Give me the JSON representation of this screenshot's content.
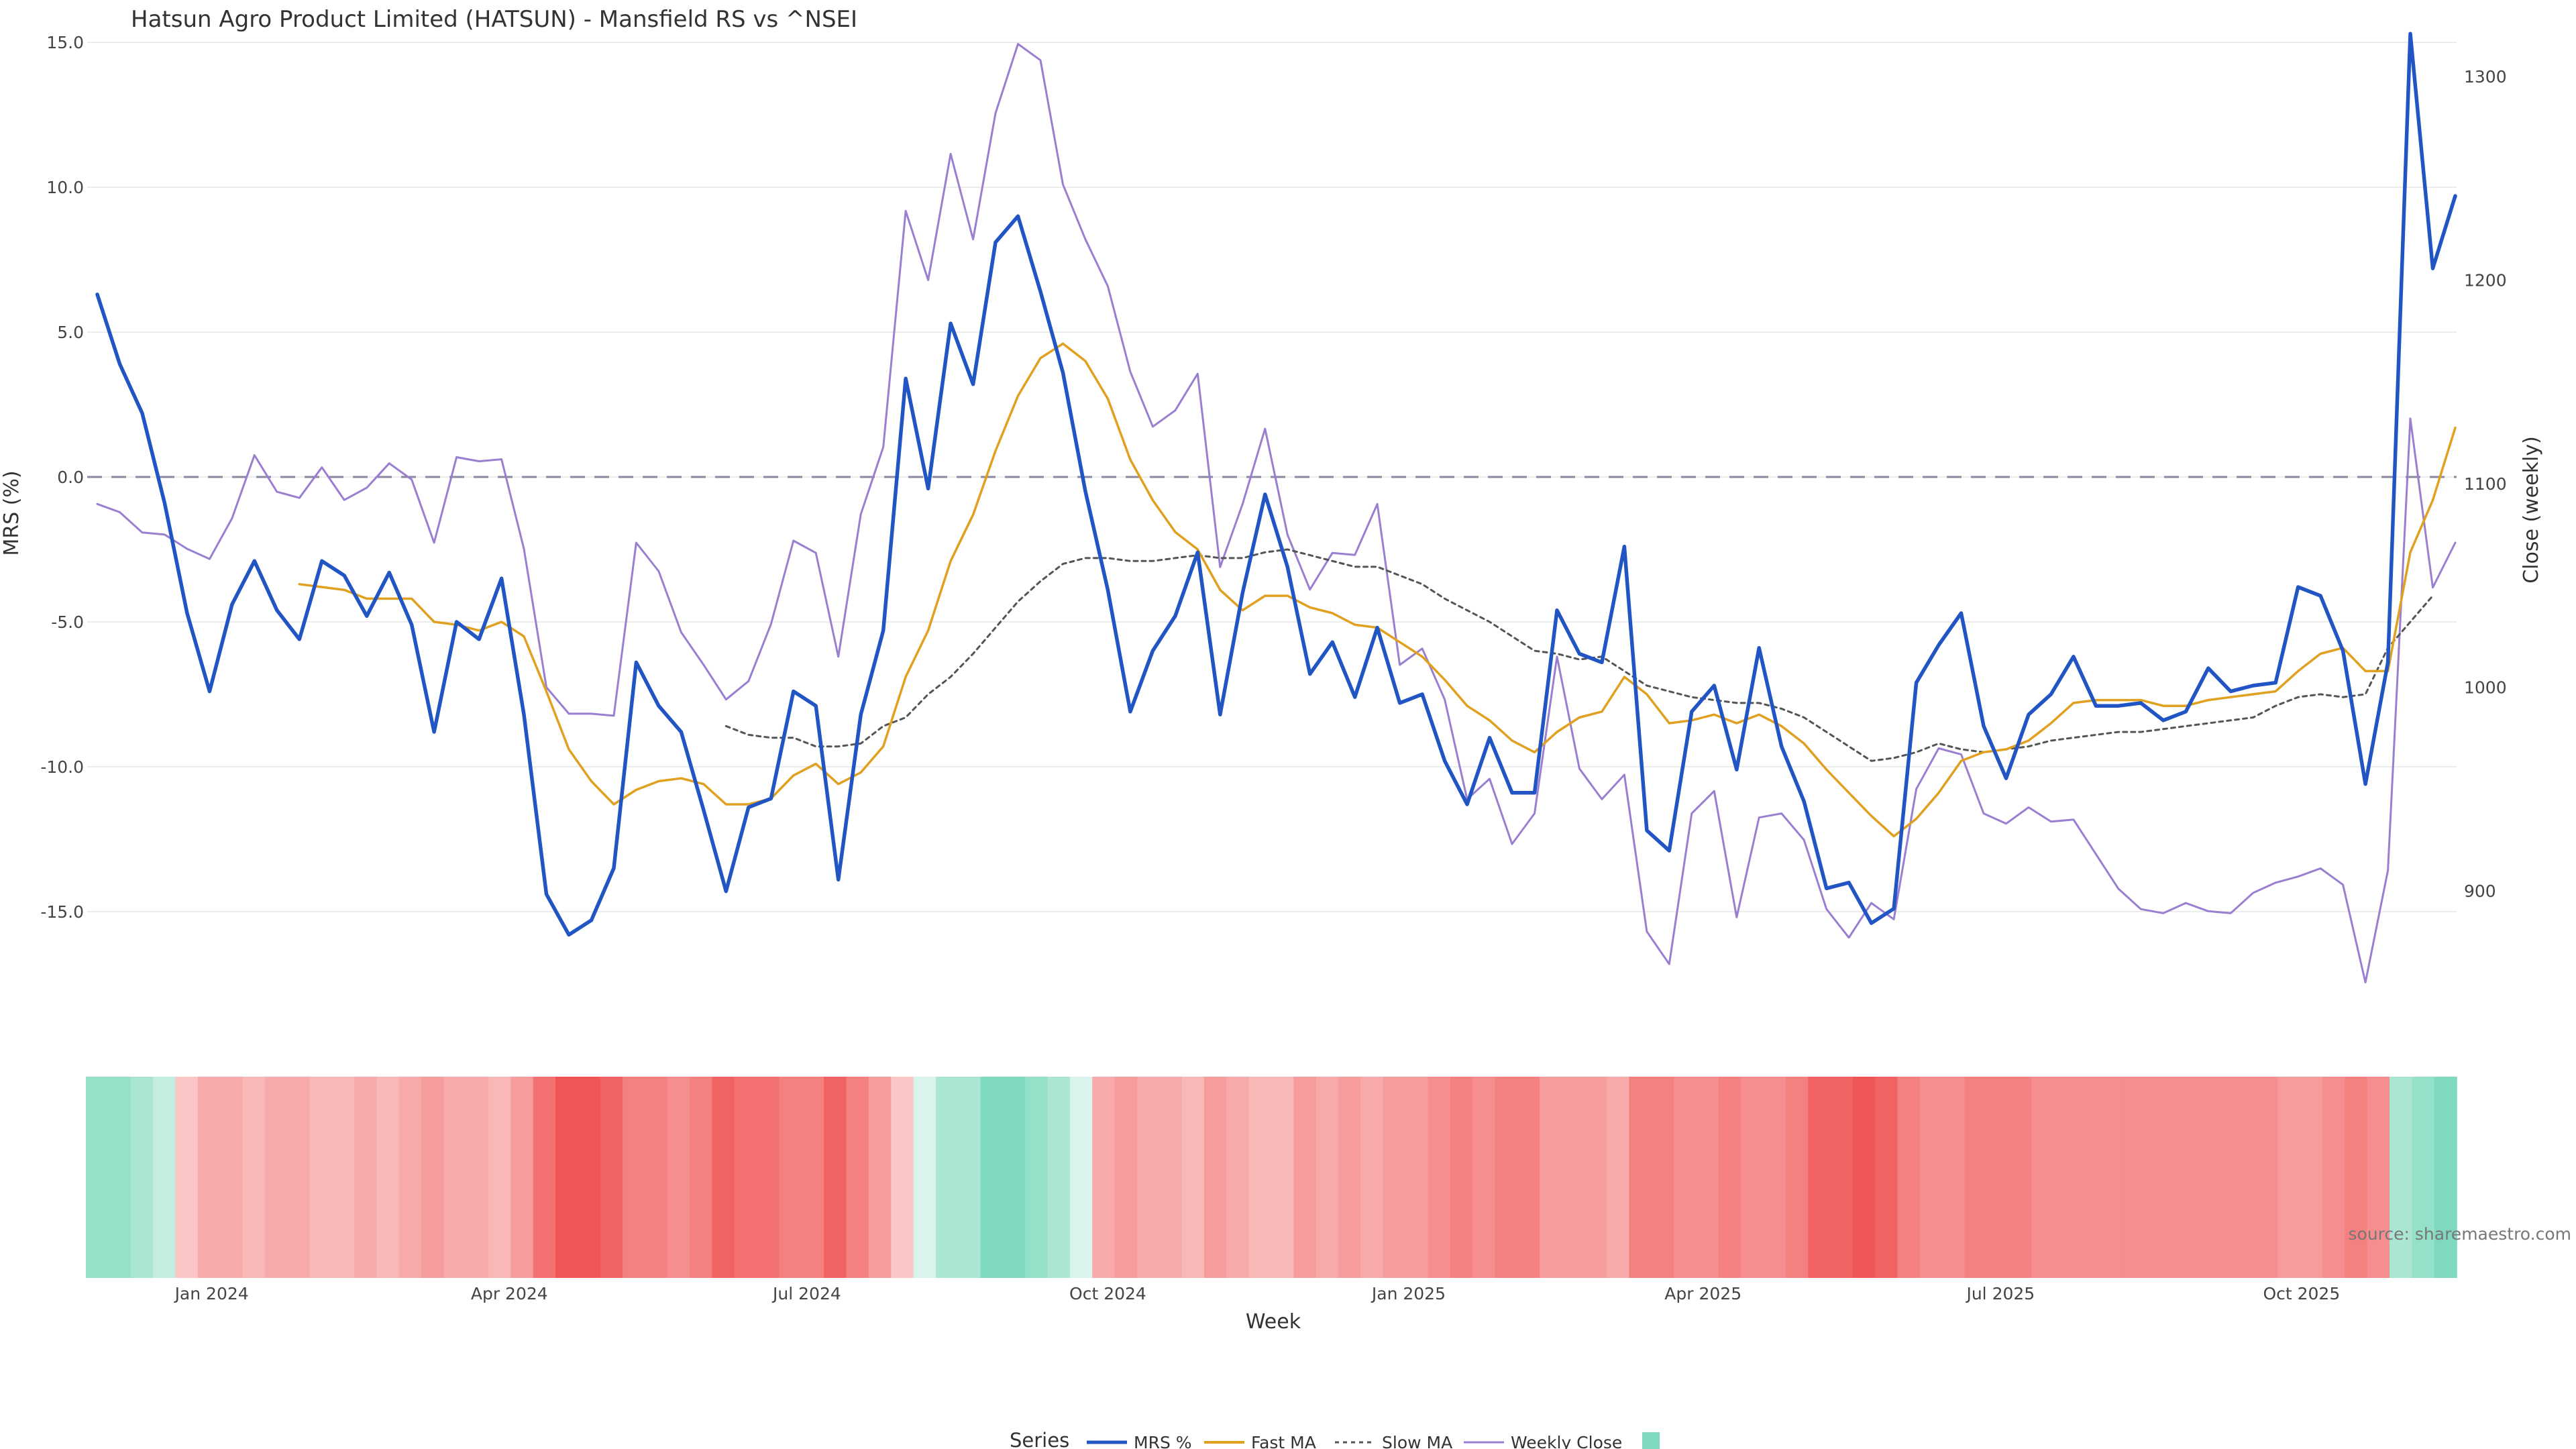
{
  "chart_data": {
    "type": "line",
    "title": "Hatsun Agro Product Limited (HATSUN) - Mansfield RS vs ^NSEI",
    "xlabel": "Week",
    "ylabel": "MRS (%)",
    "y2label": "Close (weekly)",
    "source": "source: sharemaestro.com",
    "legend_title": "Series",
    "x_start": "2023-11-27",
    "x_end": "2025-11-17",
    "x_ticks": [
      "Jan 2024",
      "Apr 2024",
      "Jul 2024",
      "Oct 2024",
      "Jan 2025",
      "Apr 2025",
      "Jul 2025",
      "Oct 2025"
    ],
    "x_tick_dates": [
      "2024-01-01",
      "2024-04-01",
      "2024-07-01",
      "2024-10-01",
      "2025-01-01",
      "2025-04-01",
      "2025-07-01",
      "2025-10-01"
    ],
    "y_ticks": [
      "15.0",
      "10.0",
      "5.0",
      "0.0",
      "-5.0",
      "-10.0",
      "-15.0"
    ],
    "y_tick_values": [
      15,
      10,
      5,
      0,
      -5,
      -10,
      -15
    ],
    "y2_ticks": [
      "1300",
      "1200",
      "1100",
      "1000",
      "900"
    ],
    "y2_tick_values": [
      1300,
      1200,
      1100,
      1000,
      900
    ],
    "ylim": [
      -18.5,
      16
    ],
    "y2lim": [
      840,
      1331
    ],
    "grid": true,
    "reference_line": 0,
    "colors": {
      "mrs": "#2255c4",
      "fast": "#e0a020",
      "slow": "#555555",
      "close": "#9a7fd1",
      "zero_line": "#8888a0",
      "strong_positive": "#7ed9be",
      "strong_negative": "#f05555"
    },
    "series": [
      {
        "name": "MRS %",
        "axis": "left",
        "values": [
          6.3,
          3.9,
          2.2,
          -0.9,
          -4.7,
          -7.4,
          -4.4,
          -2.9,
          -4.6,
          -5.6,
          -2.9,
          -3.4,
          -4.8,
          -3.3,
          -5.1,
          -8.8,
          -5.0,
          -5.6,
          -3.5,
          -8.2,
          -14.4,
          -15.8,
          -15.3,
          -13.5,
          -6.4,
          -7.9,
          -8.8,
          -11.5,
          -14.3,
          -11.4,
          -11.1,
          -7.4,
          -7.9,
          -13.9,
          -8.2,
          -5.3,
          3.4,
          -0.4,
          5.3,
          3.2,
          8.1,
          9.0,
          6.4,
          3.6,
          -0.5,
          -3.9,
          -8.1,
          -6.0,
          -4.8,
          -2.6,
          -8.2,
          -4.0,
          -0.6,
          -3.1,
          -6.8,
          -5.7,
          -7.6,
          -5.2,
          -7.8,
          -7.5,
          -9.8,
          -11.3,
          -9.0,
          -10.9,
          -10.9,
          -4.6,
          -6.1,
          -6.4,
          -2.4,
          -12.2,
          -12.9,
          -8.1,
          -7.2,
          -10.1,
          -5.9,
          -9.3,
          -11.2,
          -14.2,
          -14.0,
          -15.4,
          -14.9,
          -7.1,
          -5.8,
          -4.7,
          -8.6,
          -10.4,
          -8.2,
          -7.5,
          -6.2,
          -7.9,
          -7.9,
          -7.8,
          -8.4,
          -8.1,
          -6.6,
          -7.4,
          -7.2,
          -7.1,
          -3.8,
          -4.1,
          -6.0,
          -10.6,
          -6.4,
          15.3,
          7.2,
          9.7
        ]
      },
      {
        "name": "Fast MA",
        "axis": "left",
        "values": [
          null,
          null,
          null,
          null,
          null,
          null,
          null,
          null,
          null,
          -3.7,
          -3.8,
          -3.9,
          -4.2,
          -4.2,
          -4.2,
          -5.0,
          -5.1,
          -5.3,
          -5.0,
          -5.5,
          -7.4,
          -9.4,
          -10.5,
          -11.3,
          -10.8,
          -10.5,
          -10.4,
          -10.6,
          -11.3,
          -11.3,
          -11.1,
          -10.3,
          -9.9,
          -10.6,
          -10.2,
          -9.3,
          -6.9,
          -5.3,
          -2.9,
          -1.3,
          0.9,
          2.8,
          4.1,
          4.6,
          4.0,
          2.7,
          0.6,
          -0.8,
          -1.9,
          -2.5,
          -3.9,
          -4.6,
          -4.1,
          -4.1,
          -4.5,
          -4.7,
          -5.1,
          -5.2,
          -5.7,
          -6.2,
          -7.0,
          -7.9,
          -8.4,
          -9.1,
          -9.5,
          -8.8,
          -8.3,
          -8.1,
          -6.9,
          -7.5,
          -8.5,
          -8.4,
          -8.2,
          -8.5,
          -8.2,
          -8.6,
          -9.2,
          -10.1,
          -10.9,
          -11.7,
          -12.4,
          -11.8,
          -10.9,
          -9.8,
          -9.5,
          -9.4,
          -9.1,
          -8.5,
          -7.8,
          -7.7,
          -7.7,
          -7.7,
          -7.9,
          -7.9,
          -7.7,
          -7.6,
          -7.5,
          -7.4,
          -6.7,
          -6.1,
          -5.9,
          -6.7,
          -6.7,
          -2.6,
          -0.8,
          1.7
        ]
      },
      {
        "name": "Slow MA",
        "axis": "left",
        "values": [
          null,
          null,
          null,
          null,
          null,
          null,
          null,
          null,
          null,
          null,
          null,
          null,
          null,
          null,
          null,
          null,
          null,
          null,
          null,
          null,
          null,
          null,
          null,
          null,
          null,
          null,
          null,
          null,
          -8.6,
          -8.9,
          -9.0,
          -9.0,
          -9.3,
          -9.3,
          -9.2,
          -8.6,
          -8.3,
          -7.5,
          -6.9,
          -6.1,
          -5.2,
          -4.3,
          -3.6,
          -3.0,
          -2.8,
          -2.8,
          -2.9,
          -2.9,
          -2.8,
          -2.7,
          -2.8,
          -2.8,
          -2.6,
          -2.5,
          -2.7,
          -2.9,
          -3.1,
          -3.1,
          -3.4,
          -3.7,
          -4.2,
          -4.6,
          -5.0,
          -5.5,
          -6.0,
          -6.1,
          -6.3,
          -6.2,
          -6.7,
          -7.2,
          -7.4,
          -7.6,
          -7.7,
          -7.8,
          -7.8,
          -8.0,
          -8.3,
          -8.8,
          -9.3,
          -9.8,
          -9.7,
          -9.5,
          -9.2,
          -9.4,
          -9.5,
          -9.4,
          -9.3,
          -9.1,
          -9.0,
          -8.9,
          -8.8,
          -8.8,
          -8.7,
          -8.6,
          -8.5,
          -8.4,
          -8.3,
          -7.9,
          -7.6,
          -7.5,
          -7.6,
          -7.5,
          -5.9,
          -5.0,
          -4.1
        ]
      },
      {
        "name": "Weekly Close",
        "axis": "right",
        "values": [
          1090,
          1086,
          1076,
          1075,
          1068,
          1063,
          1083,
          1114,
          1096,
          1093,
          1108,
          1092,
          1098,
          1110,
          1102,
          1071,
          1113,
          1111,
          1112,
          1068,
          1000,
          987,
          987,
          986,
          1071,
          1057,
          1027,
          1011,
          994,
          1003,
          1031,
          1072,
          1066,
          1015,
          1085,
          1118,
          1234,
          1200,
          1262,
          1220,
          1282,
          1316,
          1308,
          1247,
          1220,
          1197,
          1155,
          1128,
          1136,
          1154,
          1059,
          1090,
          1127,
          1075,
          1048,
          1066,
          1065,
          1090,
          1011,
          1019,
          994,
          945,
          955,
          923,
          938,
          1015,
          960,
          945,
          957,
          880,
          864,
          938,
          949,
          887,
          936,
          938,
          925,
          891,
          877,
          894,
          886,
          950,
          970,
          967,
          938,
          933,
          941,
          934,
          935,
          918,
          901,
          891,
          889,
          894,
          890,
          889,
          899,
          904,
          907,
          911,
          903,
          855,
          910,
          1132,
          1049,
          1071
        ]
      }
    ],
    "heatmap_values": [
      3,
      3,
      2,
      1,
      -1,
      -3,
      -3,
      -2,
      -3,
      -3,
      -2,
      -2,
      -3,
      -2,
      -3,
      -4,
      -3,
      -3,
      -2,
      -4,
      -7,
      -9,
      -9,
      -8,
      -6,
      -6,
      -5,
      -6,
      -8,
      -7,
      -7,
      -6,
      -6,
      -8,
      -6,
      -4,
      -1,
      0,
      2,
      2,
      4,
      4,
      3,
      2,
      0,
      -3,
      -4,
      -3,
      -3,
      -2,
      -4,
      -3,
      -2,
      -2,
      -4,
      -3,
      -4,
      -3,
      -4,
      -4,
      -5,
      -6,
      -5,
      -6,
      -6,
      -4,
      -4,
      -4,
      -3,
      -6,
      -6,
      -5,
      -5,
      -6,
      -5,
      -5,
      -6,
      -8,
      -8,
      -9,
      -8,
      -6,
      -5,
      -5,
      -6,
      -6,
      -6,
      -5,
      -5,
      -5,
      -5,
      -5,
      -5,
      -5,
      -5,
      -5,
      -5,
      -5,
      -4,
      -4,
      -5,
      -6,
      -5,
      2,
      3,
      4
    ]
  }
}
